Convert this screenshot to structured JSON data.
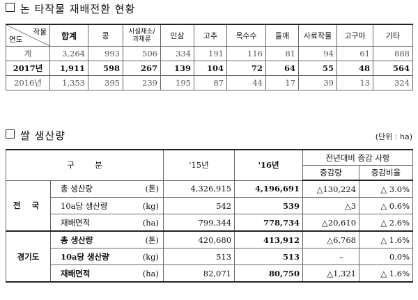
{
  "section1": {
    "title": "논 타작물 재배전환 현황",
    "corner_top": "작물",
    "corner_bottom": "연도",
    "columns": [
      "합계",
      "콩",
      "시설채소/과채류",
      "인삼",
      "고추",
      "옥수수",
      "들깨",
      "사료작물",
      "고구마",
      "기타"
    ],
    "rows": [
      {
        "label": "계",
        "values": [
          "3,264",
          "993",
          "506",
          "334",
          "191",
          "116",
          "81",
          "94",
          "61",
          "888"
        ]
      },
      {
        "label": "2017년",
        "values": [
          "1,911",
          "598",
          "267",
          "139",
          "104",
          "72",
          "64",
          "55",
          "48",
          "564"
        ]
      },
      {
        "label": "2016년",
        "values": [
          "1,353",
          "395",
          "239",
          "195",
          "87",
          "44",
          "17",
          "39",
          "13",
          "324"
        ]
      }
    ]
  },
  "section2": {
    "title": "쌀 생산량",
    "unit": "(단위 : ha)",
    "header": {
      "category": "구        분",
      "y15": "'15년",
      "y16": "'16년",
      "compare": "전년대비 증감 사항",
      "change": "증감량",
      "ratio": "증감비율"
    },
    "regions": [
      {
        "name": "전 국",
        "rows": [
          {
            "item": "총 생산량",
            "unit": "(톤)",
            "y15": "4,326,915",
            "y16": "4,196,691",
            "change": "△130,224",
            "ratio": "△ 3.0%"
          },
          {
            "item": "10a당 생산량",
            "unit": "(kg)",
            "y15": "542",
            "y16": "539",
            "change": "△3",
            "ratio": "△ 0.6%"
          },
          {
            "item": "재배면적",
            "unit": "(ha)",
            "y15": "799,344",
            "y16": "778,734",
            "change": "△20,610",
            "ratio": "△ 2.6%"
          }
        ]
      },
      {
        "name": "경기도",
        "rows": [
          {
            "item": "총 생산량",
            "unit": "(톤)",
            "y15": "420,680",
            "y16": "413,912",
            "change": "△6,768",
            "ratio": "△ 1.6%"
          },
          {
            "item": "10a당 생산량",
            "unit": "(kg)",
            "y15": "513",
            "y16": "513",
            "change": "–",
            "ratio": "0.0%"
          },
          {
            "item": "재배면적",
            "unit": "(ha)",
            "y15": "82,071",
            "y16": "80,750",
            "change": "△1,321",
            "ratio": "△ 1.6%"
          }
        ]
      }
    ]
  }
}
